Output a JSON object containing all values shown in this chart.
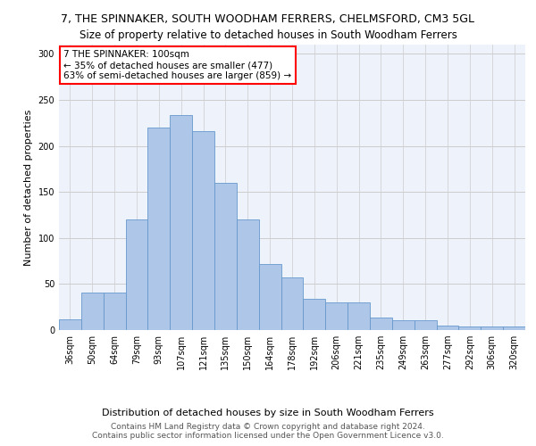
{
  "title": "7, THE SPINNAKER, SOUTH WOODHAM FERRERS, CHELMSFORD, CM3 5GL",
  "subtitle": "Size of property relative to detached houses in South Woodham Ferrers",
  "xlabel": "Distribution of detached houses by size in South Woodham Ferrers",
  "ylabel": "Number of detached properties",
  "footer_line1": "Contains HM Land Registry data © Crown copyright and database right 2024.",
  "footer_line2": "Contains public sector information licensed under the Open Government Licence v3.0.",
  "annotation_line1": "7 THE SPINNAKER: 100sqm",
  "annotation_line2": "← 35% of detached houses are smaller (477)",
  "annotation_line3": "63% of semi-detached houses are larger (859) →",
  "categories": [
    "36sqm",
    "50sqm",
    "64sqm",
    "79sqm",
    "93sqm",
    "107sqm",
    "121sqm",
    "135sqm",
    "150sqm",
    "164sqm",
    "178sqm",
    "192sqm",
    "206sqm",
    "221sqm",
    "235sqm",
    "249sqm",
    "263sqm",
    "277sqm",
    "292sqm",
    "306sqm",
    "320sqm"
  ],
  "values": [
    12,
    41,
    41,
    120,
    220,
    233,
    216,
    160,
    120,
    72,
    57,
    34,
    30,
    30,
    14,
    11,
    11,
    5,
    4,
    4,
    4
  ],
  "bar_color": "#aec6e8",
  "bar_edge_color": "#6699cc",
  "ylim": [
    0,
    310
  ],
  "yticks": [
    0,
    50,
    100,
    150,
    200,
    250,
    300
  ],
  "grid_color": "#cccccc",
  "background_color": "#eef2fb",
  "title_fontsize": 9,
  "subtitle_fontsize": 8.5,
  "axis_label_fontsize": 8,
  "tick_fontsize": 7,
  "annotation_fontsize": 7.5,
  "footer_fontsize": 6.5
}
